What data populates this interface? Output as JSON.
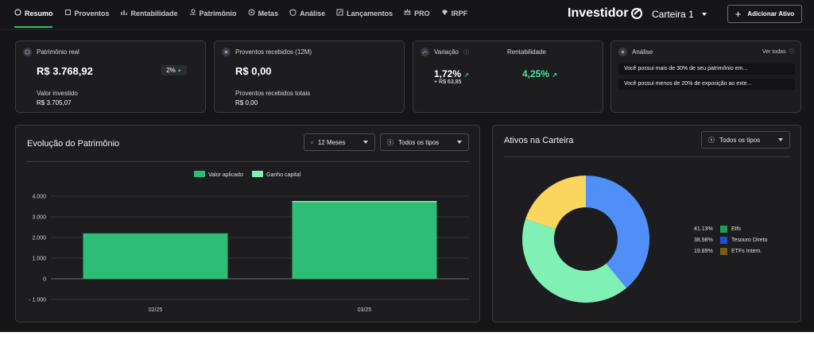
{
  "nav": {
    "items": [
      {
        "label": "Resumo",
        "icon": "dashboard-icon",
        "active": true
      },
      {
        "label": "Proventos",
        "icon": "book-icon"
      },
      {
        "label": "Rentabilidade",
        "icon": "bar-chart-icon"
      },
      {
        "label": "Patrimônio",
        "icon": "hand-coin-icon"
      },
      {
        "label": "Metas",
        "icon": "target-icon"
      },
      {
        "label": "Análise",
        "icon": "shield-icon"
      },
      {
        "label": "Lançamentos",
        "icon": "edit-icon"
      },
      {
        "label": "PRO",
        "icon": "crown-icon"
      },
      {
        "label": "IRPF",
        "icon": "diamond-icon"
      }
    ],
    "brand": "Investidor",
    "wallet": "Carteira 1",
    "add_button": "Adicionar Ativo"
  },
  "cards": {
    "patrimonio": {
      "title": "Patrimônio real",
      "value": "R$ 3.768,92",
      "badge": "2%",
      "sub_label": "Valor investido",
      "sub_value": "R$ 3.705,07"
    },
    "proventos": {
      "title": "Proventos recebidos (12M)",
      "value": "R$ 0,00",
      "sub_label": "Proventos recebidos totais",
      "sub_value": "R$ 0,00"
    },
    "variacao": {
      "title": "Variação",
      "value": "1,72%",
      "sub_value": "+ R$ 63,85",
      "rent_title": "Rentabilidade",
      "rent_value": "4,25%"
    },
    "analise": {
      "title": "Análise",
      "link": "Ver todas",
      "items": [
        "Você possui mais de 30% de seu patrimônio em...",
        "Você possui menos de 20% de exposição ao exte..."
      ]
    }
  },
  "evolucao": {
    "title": "Evolução do Patrimônio",
    "period_select": "12 Meses",
    "type_select": "Todos os tipos"
  },
  "ativos": {
    "title": "Ativos na Carteira",
    "type_select": "Todos os tipos"
  },
  "colors": {
    "accent": "#2ebd76",
    "light_green": "#80f0b5",
    "blue": "#4f8ff7",
    "yellow": "#fbd65e"
  },
  "chart_data": [
    {
      "type": "bar",
      "categories": [
        "02/25",
        "03/25"
      ],
      "series": [
        {
          "name": "Valor aplicado",
          "values": [
            2200,
            3705.07
          ],
          "color": "#2ebd76"
        },
        {
          "name": "Ganho capital",
          "values": [
            0,
            63.85
          ],
          "color": "#80f0b5"
        }
      ],
      "ylim": [
        -1000,
        4000
      ],
      "yticks": [
        "4.000",
        "3.000",
        "2.000",
        "1.000",
        "0",
        "- 1.000"
      ],
      "ytick_values": [
        4000,
        3000,
        2000,
        1000,
        0,
        -1000
      ],
      "grid": true,
      "legend": "top-center"
    },
    {
      "type": "pie",
      "labels": [
        "Etfs",
        "Tesouro Direto",
        "ETFs Intern."
      ],
      "pct_labels": [
        "41.13%",
        "38.98%",
        "19.89%"
      ],
      "values": [
        41.13,
        38.98,
        19.89
      ],
      "legend_colors": [
        "#1f9d55",
        "#1d4ed8",
        "#7c5b0e"
      ],
      "slice_colors": [
        "#80f0b5",
        "#4f8ff7",
        "#fbd65e"
      ],
      "donut": true,
      "legend": "right"
    }
  ]
}
